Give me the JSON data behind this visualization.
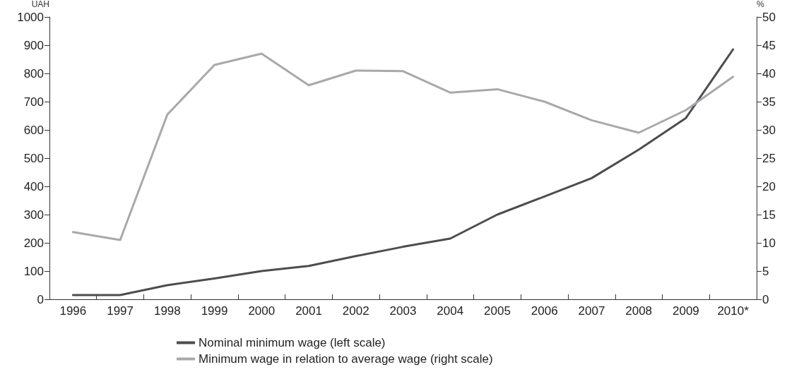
{
  "chart_data": {
    "type": "line",
    "categories": [
      "1996",
      "1997",
      "1998",
      "1999",
      "2000",
      "2001",
      "2002",
      "2003",
      "2004",
      "2005",
      "2006",
      "2007",
      "2008",
      "2009",
      "2010*"
    ],
    "ylabel": "UAH",
    "y2label": "%",
    "ylim": [
      0,
      1000
    ],
    "yticks": [
      0,
      100,
      200,
      300,
      400,
      500,
      600,
      700,
      800,
      900,
      1000
    ],
    "y2lim": [
      0,
      50
    ],
    "y2ticks": [
      0,
      5,
      10,
      15,
      20,
      25,
      30,
      35,
      40,
      45,
      50
    ],
    "series": [
      {
        "name": "Nominal minimum wage (left scale)",
        "color": "#4d4d4f",
        "values": [
          15,
          15,
          50,
          74,
          100,
          118,
          153,
          186,
          215,
          300,
          364,
          429,
          530,
          642,
          885
        ]
      },
      {
        "name": "Minimum wage in relation to average wage (right scale)",
        "color": "#a7a9ac",
        "axis": "y2",
        "values": [
          11.9,
          10.5,
          32.7,
          41.5,
          43.5,
          37.9,
          40.5,
          40.4,
          36.6,
          37.2,
          35,
          31.7,
          29.5,
          33.5,
          39.4
        ]
      }
    ],
    "legend": "bottom",
    "grid": false,
    "marker": "none",
    "line_style": "solid"
  }
}
